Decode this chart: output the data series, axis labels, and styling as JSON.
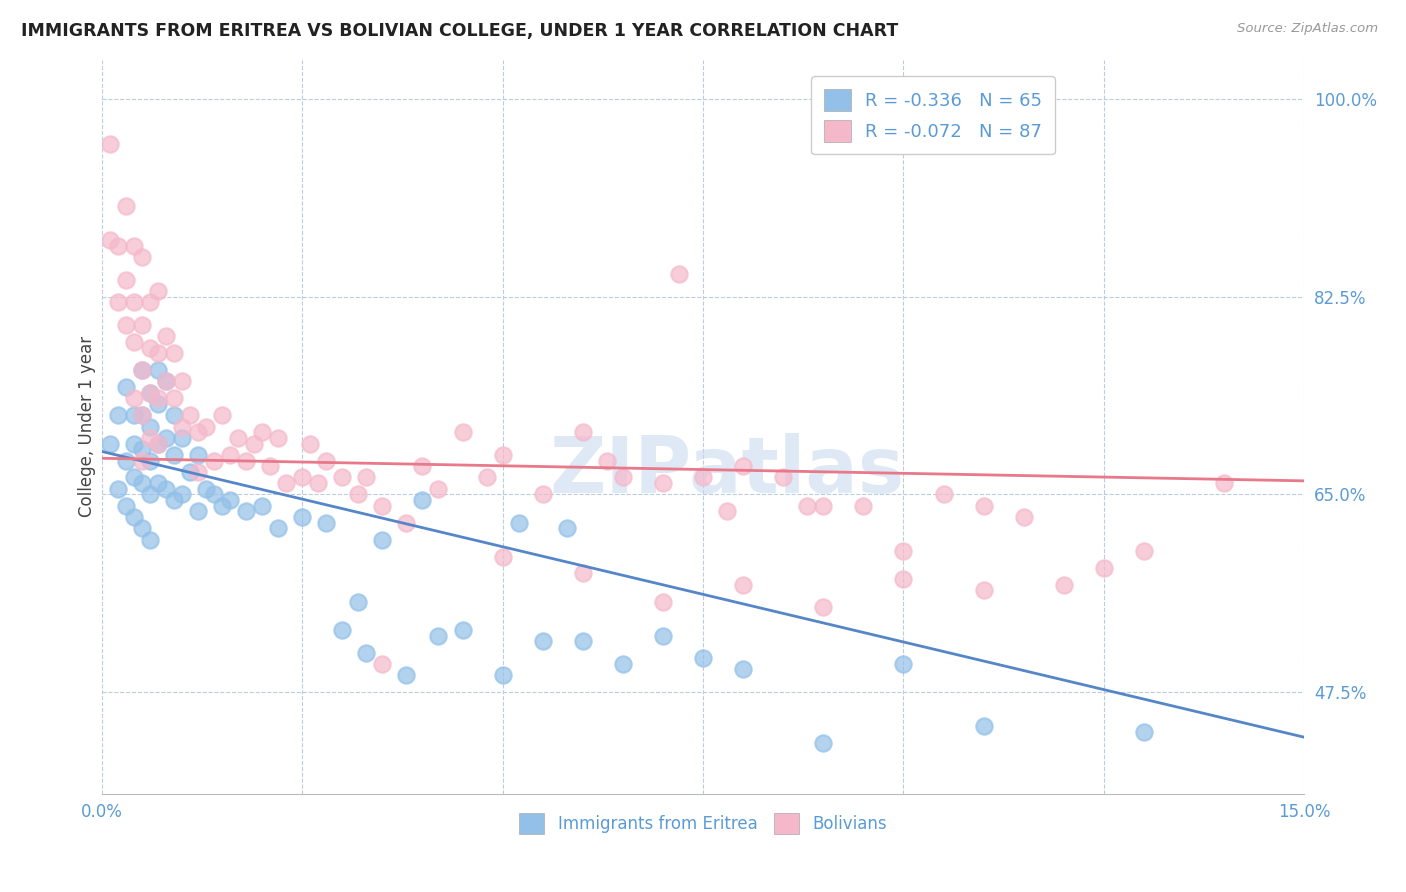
{
  "title": "IMMIGRANTS FROM ERITREA VS BOLIVIAN COLLEGE, UNDER 1 YEAR CORRELATION CHART",
  "source": "Source: ZipAtlas.com",
  "ylabel": "College, Under 1 year",
  "xlim": [
    0.0,
    0.15
  ],
  "ylim": [
    0.385,
    1.035
  ],
  "xticks": [
    0.0,
    0.025,
    0.05,
    0.075,
    0.1,
    0.125,
    0.15
  ],
  "xticklabels": [
    "0.0%",
    "",
    "",
    "",
    "",
    "",
    "15.0%"
  ],
  "right_yticks": [
    1.0,
    0.825,
    0.65,
    0.475
  ],
  "right_yticklabels": [
    "100.0%",
    "82.5%",
    "65.0%",
    "47.5%"
  ],
  "legend_labels": [
    "Immigrants from Eritrea",
    "Bolivians"
  ],
  "legend_R": [
    "-0.336",
    "-0.072"
  ],
  "legend_N": [
    "65",
    "87"
  ],
  "blue_color": "#92C0E8",
  "pink_color": "#F5B8CB",
  "blue_line_color": "#5586C8",
  "pink_line_color": "#E8788A",
  "blue_line_x0": 0.0,
  "blue_line_y0": 0.688,
  "blue_line_x1": 0.15,
  "blue_line_y1": 0.435,
  "pink_line_x0": 0.0,
  "pink_line_y0": 0.682,
  "pink_line_x1": 0.15,
  "pink_line_y1": 0.662,
  "watermark": "ZIPatlas",
  "blue_x": [
    0.001,
    0.002,
    0.002,
    0.003,
    0.003,
    0.003,
    0.004,
    0.004,
    0.004,
    0.004,
    0.005,
    0.005,
    0.005,
    0.005,
    0.005,
    0.006,
    0.006,
    0.006,
    0.006,
    0.006,
    0.007,
    0.007,
    0.007,
    0.007,
    0.008,
    0.008,
    0.008,
    0.009,
    0.009,
    0.009,
    0.01,
    0.01,
    0.011,
    0.012,
    0.012,
    0.013,
    0.014,
    0.015,
    0.016,
    0.018,
    0.02,
    0.022,
    0.025,
    0.028,
    0.03,
    0.032,
    0.033,
    0.035,
    0.038,
    0.04,
    0.042,
    0.045,
    0.05,
    0.052,
    0.055,
    0.058,
    0.06,
    0.065,
    0.07,
    0.075,
    0.08,
    0.09,
    0.1,
    0.11,
    0.13
  ],
  "blue_y": [
    0.695,
    0.72,
    0.655,
    0.745,
    0.68,
    0.64,
    0.72,
    0.695,
    0.665,
    0.63,
    0.76,
    0.72,
    0.69,
    0.66,
    0.62,
    0.74,
    0.71,
    0.68,
    0.65,
    0.61,
    0.76,
    0.73,
    0.695,
    0.66,
    0.75,
    0.7,
    0.655,
    0.72,
    0.685,
    0.645,
    0.7,
    0.65,
    0.67,
    0.685,
    0.635,
    0.655,
    0.65,
    0.64,
    0.645,
    0.635,
    0.64,
    0.62,
    0.63,
    0.625,
    0.53,
    0.555,
    0.51,
    0.61,
    0.49,
    0.645,
    0.525,
    0.53,
    0.49,
    0.625,
    0.52,
    0.62,
    0.52,
    0.5,
    0.525,
    0.505,
    0.495,
    0.43,
    0.5,
    0.445,
    0.44
  ],
  "pink_x": [
    0.001,
    0.001,
    0.002,
    0.002,
    0.003,
    0.003,
    0.003,
    0.004,
    0.004,
    0.004,
    0.004,
    0.005,
    0.005,
    0.005,
    0.005,
    0.005,
    0.006,
    0.006,
    0.006,
    0.006,
    0.007,
    0.007,
    0.007,
    0.007,
    0.008,
    0.008,
    0.009,
    0.009,
    0.01,
    0.01,
    0.011,
    0.012,
    0.012,
    0.013,
    0.014,
    0.015,
    0.016,
    0.017,
    0.018,
    0.019,
    0.02,
    0.021,
    0.022,
    0.023,
    0.025,
    0.026,
    0.027,
    0.028,
    0.03,
    0.032,
    0.033,
    0.035,
    0.038,
    0.04,
    0.042,
    0.045,
    0.048,
    0.05,
    0.055,
    0.06,
    0.063,
    0.065,
    0.07,
    0.072,
    0.075,
    0.078,
    0.08,
    0.085,
    0.088,
    0.09,
    0.095,
    0.1,
    0.105,
    0.11,
    0.115,
    0.12,
    0.125,
    0.035,
    0.05,
    0.06,
    0.07,
    0.08,
    0.09,
    0.1,
    0.11,
    0.13,
    0.14
  ],
  "pink_y": [
    0.96,
    0.875,
    0.87,
    0.82,
    0.905,
    0.84,
    0.8,
    0.87,
    0.82,
    0.785,
    0.735,
    0.86,
    0.8,
    0.76,
    0.72,
    0.68,
    0.82,
    0.78,
    0.74,
    0.7,
    0.83,
    0.775,
    0.735,
    0.695,
    0.79,
    0.75,
    0.775,
    0.735,
    0.75,
    0.71,
    0.72,
    0.705,
    0.67,
    0.71,
    0.68,
    0.72,
    0.685,
    0.7,
    0.68,
    0.695,
    0.705,
    0.675,
    0.7,
    0.66,
    0.665,
    0.695,
    0.66,
    0.68,
    0.665,
    0.65,
    0.665,
    0.64,
    0.625,
    0.675,
    0.655,
    0.705,
    0.665,
    0.685,
    0.65,
    0.705,
    0.68,
    0.665,
    0.66,
    0.845,
    0.665,
    0.635,
    0.675,
    0.665,
    0.64,
    0.64,
    0.64,
    0.6,
    0.65,
    0.64,
    0.63,
    0.57,
    0.585,
    0.5,
    0.595,
    0.58,
    0.555,
    0.57,
    0.55,
    0.575,
    0.565,
    0.6,
    0.66
  ]
}
